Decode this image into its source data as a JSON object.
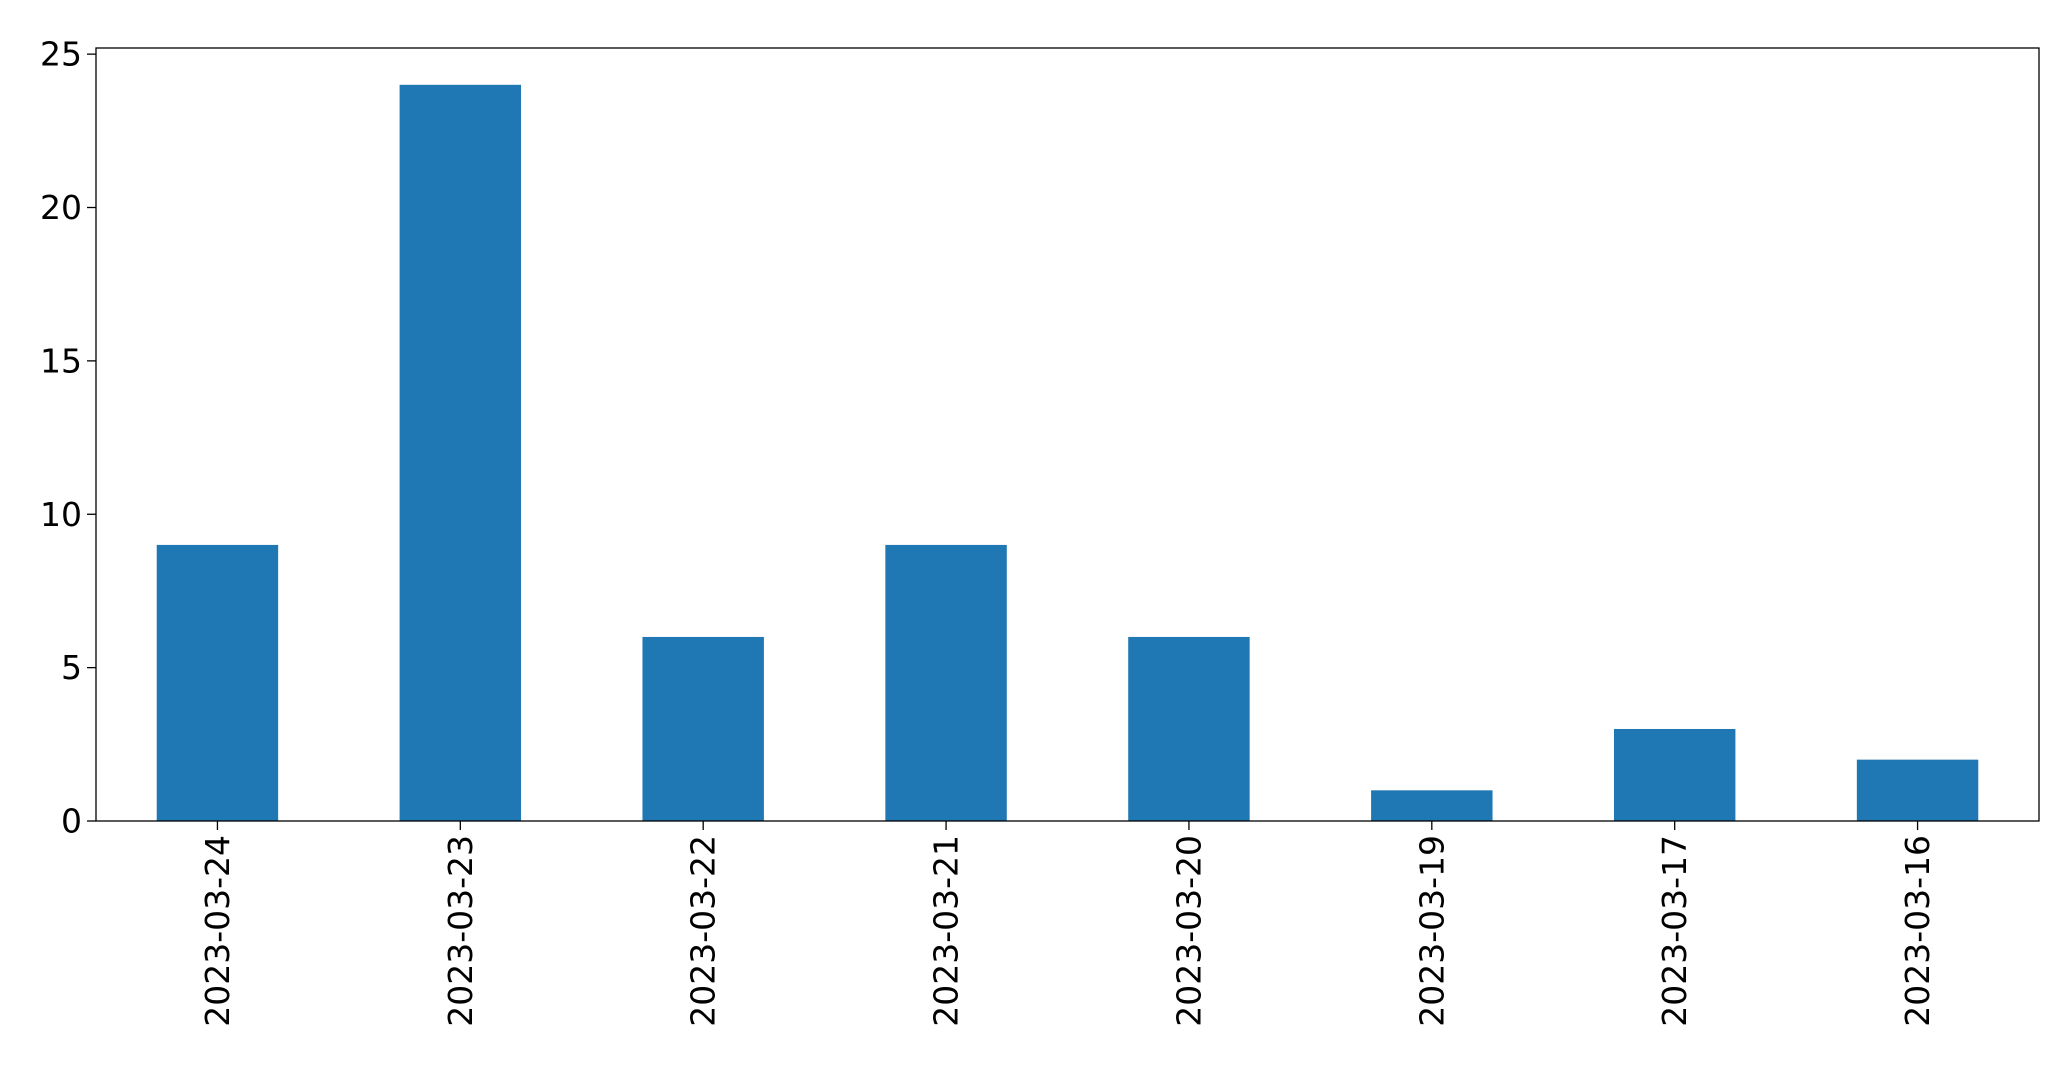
{
  "chart_data": {
    "type": "bar",
    "title": "",
    "xlabel": "",
    "ylabel": "",
    "categories": [
      "2023-03-24",
      "2023-03-23",
      "2023-03-22",
      "2023-03-21",
      "2023-03-20",
      "2023-03-19",
      "2023-03-17",
      "2023-03-16"
    ],
    "values": [
      9,
      24,
      6,
      9,
      6,
      1,
      3,
      2
    ],
    "ylim": [
      0,
      25.2
    ],
    "yticks": [
      0,
      5,
      10,
      15,
      20,
      25
    ],
    "bar_color": "#1f77b4",
    "grid": false,
    "legend": "none"
  }
}
